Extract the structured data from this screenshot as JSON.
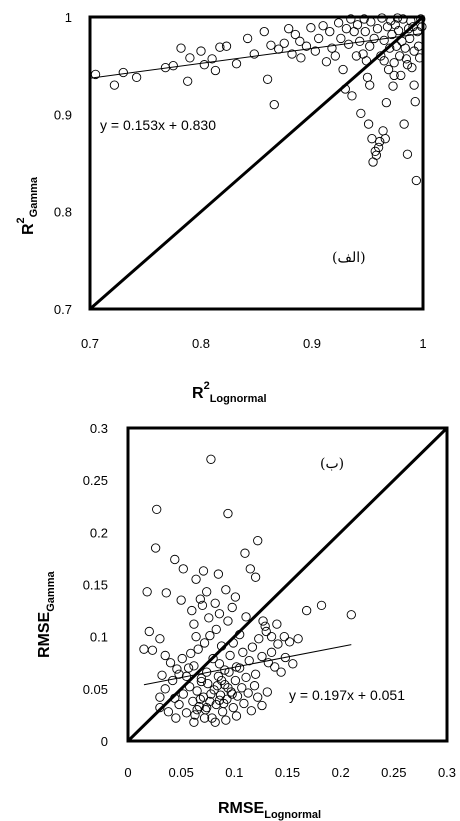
{
  "chart_data": [
    {
      "type": "scatter",
      "panel_label": "(الف)",
      "xlabel": {
        "main": "R",
        "sup": "2",
        "sub": "Lognormal"
      },
      "ylabel": {
        "main": "R",
        "sup": "2",
        "sub": "Gamma"
      },
      "xlim": [
        0.7,
        1.0
      ],
      "ylim": [
        0.7,
        1.0
      ],
      "xticks": [
        "0.7",
        "0.8",
        "0.9",
        "1"
      ],
      "yticks": [
        "0.7",
        "0.8",
        "0.9",
        "1"
      ],
      "grid": false,
      "lines": [
        {
          "kind": "identity",
          "x": [
            0.7,
            1.0
          ],
          "y": [
            0.7,
            1.0
          ]
        },
        {
          "kind": "fit",
          "slope": 0.153,
          "intercept": 0.83,
          "x": [
            0.7,
            1.0
          ]
        }
      ],
      "equation": "y = 0.153x + 0.830",
      "points": [
        [
          0.705,
          0.941
        ],
        [
          0.722,
          0.93
        ],
        [
          0.73,
          0.943
        ],
        [
          0.742,
          0.938
        ],
        [
          0.768,
          0.948
        ],
        [
          0.775,
          0.95
        ],
        [
          0.782,
          0.968
        ],
        [
          0.788,
          0.934
        ],
        [
          0.79,
          0.958
        ],
        [
          0.8,
          0.965
        ],
        [
          0.803,
          0.951
        ],
        [
          0.81,
          0.957
        ],
        [
          0.813,
          0.945
        ],
        [
          0.817,
          0.969
        ],
        [
          0.823,
          0.97
        ],
        [
          0.832,
          0.952
        ],
        [
          0.842,
          0.978
        ],
        [
          0.848,
          0.962
        ],
        [
          0.857,
          0.985
        ],
        [
          0.86,
          0.936
        ],
        [
          0.863,
          0.971
        ],
        [
          0.866,
          0.91
        ],
        [
          0.87,
          0.967
        ],
        [
          0.875,
          0.973
        ],
        [
          0.879,
          0.988
        ],
        [
          0.882,
          0.962
        ],
        [
          0.885,
          0.982
        ],
        [
          0.889,
          0.975
        ],
        [
          0.89,
          0.958
        ],
        [
          0.895,
          0.97
        ],
        [
          0.899,
          0.989
        ],
        [
          0.903,
          0.965
        ],
        [
          0.906,
          0.978
        ],
        [
          0.91,
          0.991
        ],
        [
          0.913,
          0.954
        ],
        [
          0.916,
          0.985
        ],
        [
          0.918,
          0.968
        ],
        [
          0.921,
          0.96
        ],
        [
          0.924,
          0.994
        ],
        [
          0.926,
          0.978
        ],
        [
          0.928,
          0.946
        ],
        [
          0.93,
          0.926
        ],
        [
          0.931,
          0.988
        ],
        [
          0.933,
          0.972
        ],
        [
          0.935,
          0.998
        ],
        [
          0.936,
          0.919
        ],
        [
          0.938,
          0.985
        ],
        [
          0.94,
          0.96
        ],
        [
          0.941,
          0.992
        ],
        [
          0.943,
          0.975
        ],
        [
          0.944,
          0.901
        ],
        [
          0.946,
          0.962
        ],
        [
          0.947,
          0.998
        ],
        [
          0.948,
          0.985
        ],
        [
          0.949,
          0.955
        ],
        [
          0.95,
          0.938
        ],
        [
          0.951,
          0.89
        ],
        [
          0.952,
          0.97
        ],
        [
          0.953,
          0.995
        ],
        [
          0.954,
          0.875
        ],
        [
          0.955,
          0.851
        ],
        [
          0.956,
          0.978
        ],
        [
          0.957,
          0.862
        ],
        [
          0.958,
          0.858
        ],
        [
          0.959,
          0.988
        ],
        [
          0.96,
          0.866
        ],
        [
          0.961,
          0.872
        ],
        [
          0.962,
          0.96
        ],
        [
          0.963,
          0.999
        ],
        [
          0.964,
          0.883
        ],
        [
          0.965,
          0.976
        ],
        [
          0.966,
          0.875
        ],
        [
          0.967,
          0.912
        ],
        [
          0.968,
          0.99
        ],
        [
          0.969,
          0.946
        ],
        [
          0.97,
          0.968
        ],
        [
          0.971,
          0.996
        ],
        [
          0.972,
          0.982
        ],
        [
          0.973,
          0.929
        ],
        [
          0.974,
          0.953
        ],
        [
          0.975,
          0.992
        ],
        [
          0.976,
          0.97
        ],
        [
          0.977,
          0.999
        ],
        [
          0.978,
          0.986
        ],
        [
          0.979,
          0.96
        ],
        [
          0.98,
          0.94
        ],
        [
          0.981,
          0.975
        ],
        [
          0.982,
          0.998
        ],
        [
          0.983,
          0.89
        ],
        [
          0.984,
          0.968
        ],
        [
          0.985,
          0.957
        ],
        [
          0.986,
          0.859
        ],
        [
          0.987,
          0.988
        ],
        [
          0.988,
          0.978
        ],
        [
          0.989,
          0.996
        ],
        [
          0.99,
          0.948
        ],
        [
          0.991,
          0.99
        ],
        [
          0.992,
          0.965
        ],
        [
          0.993,
          0.913
        ],
        [
          0.994,
          0.832
        ],
        [
          0.995,
          0.985
        ],
        [
          0.996,
          0.97
        ],
        [
          0.997,
          0.958
        ],
        [
          0.998,
          0.998
        ],
        [
          0.999,
          0.99
        ],
        [
          0.965,
          0.955
        ],
        [
          0.952,
          0.93
        ],
        [
          0.974,
          0.94
        ],
        [
          0.986,
          0.951
        ],
        [
          0.992,
          0.93
        ]
      ]
    },
    {
      "type": "scatter",
      "panel_label": "(ب)",
      "xlabel": {
        "main": "RMSE",
        "sub": "Lognormal"
      },
      "ylabel": {
        "main": "RMSE",
        "sub": "Gamma"
      },
      "xlim": [
        0,
        0.3
      ],
      "ylim": [
        0,
        0.3
      ],
      "xticks": [
        "0",
        "0.05",
        "0.1",
        "0.15",
        "0.2",
        "0.25",
        "0.3"
      ],
      "yticks": [
        "0",
        "0.05",
        "0.1",
        "0.15",
        "0.2",
        "0.25",
        "0.3"
      ],
      "grid": false,
      "lines": [
        {
          "kind": "identity",
          "x": [
            0,
            0.3
          ],
          "y": [
            0,
            0.3
          ]
        },
        {
          "kind": "fit",
          "slope": 0.197,
          "intercept": 0.051,
          "x": [
            0.015,
            0.21
          ]
        }
      ],
      "equation": "y = 0.197x + 0.051",
      "points": [
        [
          0.078,
          0.27
        ],
        [
          0.027,
          0.222
        ],
        [
          0.094,
          0.218
        ],
        [
          0.026,
          0.185
        ],
        [
          0.044,
          0.174
        ],
        [
          0.052,
          0.165
        ],
        [
          0.071,
          0.163
        ],
        [
          0.085,
          0.16
        ],
        [
          0.074,
          0.143
        ],
        [
          0.064,
          0.155
        ],
        [
          0.018,
          0.143
        ],
        [
          0.036,
          0.142
        ],
        [
          0.06,
          0.125
        ],
        [
          0.068,
          0.136
        ],
        [
          0.082,
          0.132
        ],
        [
          0.092,
          0.145
        ],
        [
          0.101,
          0.138
        ],
        [
          0.11,
          0.18
        ],
        [
          0.115,
          0.165
        ],
        [
          0.12,
          0.157
        ],
        [
          0.122,
          0.192
        ],
        [
          0.127,
          0.115
        ],
        [
          0.13,
          0.105
        ],
        [
          0.135,
          0.1
        ],
        [
          0.14,
          0.112
        ],
        [
          0.147,
          0.1
        ],
        [
          0.152,
          0.095
        ],
        [
          0.16,
          0.098
        ],
        [
          0.168,
          0.125
        ],
        [
          0.182,
          0.13
        ],
        [
          0.21,
          0.121
        ],
        [
          0.02,
          0.105
        ],
        [
          0.03,
          0.098
        ],
        [
          0.035,
          0.082
        ],
        [
          0.04,
          0.075
        ],
        [
          0.046,
          0.069
        ],
        [
          0.051,
          0.079
        ],
        [
          0.055,
          0.062
        ],
        [
          0.059,
          0.084
        ],
        [
          0.062,
          0.072
        ],
        [
          0.066,
          0.088
        ],
        [
          0.069,
          0.057
        ],
        [
          0.072,
          0.094
        ],
        [
          0.074,
          0.066
        ],
        [
          0.077,
          0.101
        ],
        [
          0.08,
          0.079
        ],
        [
          0.083,
          0.107
        ],
        [
          0.086,
          0.074
        ],
        [
          0.088,
          0.091
        ],
        [
          0.091,
          0.068
        ],
        [
          0.094,
          0.115
        ],
        [
          0.096,
          0.082
        ],
        [
          0.099,
          0.094
        ],
        [
          0.102,
          0.071
        ],
        [
          0.105,
          0.102
        ],
        [
          0.108,
          0.085
        ],
        [
          0.111,
          0.119
        ],
        [
          0.114,
          0.077
        ],
        [
          0.117,
          0.09
        ],
        [
          0.12,
          0.064
        ],
        [
          0.123,
          0.098
        ],
        [
          0.126,
          0.081
        ],
        [
          0.129,
          0.11
        ],
        [
          0.132,
          0.075
        ],
        [
          0.135,
          0.085
        ],
        [
          0.138,
          0.071
        ],
        [
          0.141,
          0.093
        ],
        [
          0.144,
          0.066
        ],
        [
          0.148,
          0.08
        ],
        [
          0.155,
          0.074
        ],
        [
          0.03,
          0.032
        ],
        [
          0.038,
          0.028
        ],
        [
          0.044,
          0.041
        ],
        [
          0.048,
          0.035
        ],
        [
          0.052,
          0.045
        ],
        [
          0.055,
          0.027
        ],
        [
          0.058,
          0.052
        ],
        [
          0.061,
          0.038
        ],
        [
          0.063,
          0.025
        ],
        [
          0.065,
          0.048
        ],
        [
          0.067,
          0.033
        ],
        [
          0.069,
          0.06
        ],
        [
          0.071,
          0.042
        ],
        [
          0.073,
          0.03
        ],
        [
          0.075,
          0.055
        ],
        [
          0.077,
          0.038
        ],
        [
          0.079,
          0.022
        ],
        [
          0.081,
          0.049
        ],
        [
          0.083,
          0.035
        ],
        [
          0.085,
          0.062
        ],
        [
          0.087,
          0.044
        ],
        [
          0.089,
          0.028
        ],
        [
          0.091,
          0.054
        ],
        [
          0.093,
          0.04
        ],
        [
          0.095,
          0.066
        ],
        [
          0.097,
          0.047
        ],
        [
          0.099,
          0.032
        ],
        [
          0.101,
          0.058
        ],
        [
          0.103,
          0.043
        ],
        [
          0.105,
          0.07
        ],
        [
          0.107,
          0.051
        ],
        [
          0.109,
          0.036
        ],
        [
          0.111,
          0.061
        ],
        [
          0.113,
          0.046
        ],
        [
          0.116,
          0.029
        ],
        [
          0.119,
          0.053
        ],
        [
          0.122,
          0.042
        ],
        [
          0.126,
          0.034
        ],
        [
          0.131,
          0.047
        ],
        [
          0.062,
          0.018
        ],
        [
          0.072,
          0.022
        ],
        [
          0.082,
          0.018
        ],
        [
          0.092,
          0.02
        ],
        [
          0.102,
          0.024
        ],
        [
          0.045,
          0.022
        ],
        [
          0.035,
          0.05
        ],
        [
          0.042,
          0.058
        ],
        [
          0.048,
          0.064
        ],
        [
          0.057,
          0.07
        ],
        [
          0.064,
          0.1
        ],
        [
          0.076,
          0.118
        ],
        [
          0.086,
          0.122
        ],
        [
          0.098,
          0.128
        ],
        [
          0.07,
          0.13
        ],
        [
          0.062,
          0.112
        ],
        [
          0.05,
          0.135
        ],
        [
          0.032,
          0.063
        ],
        [
          0.03,
          0.042
        ],
        [
          0.023,
          0.087
        ],
        [
          0.015,
          0.088
        ],
        [
          0.086,
          0.039
        ],
        [
          0.09,
          0.036
        ],
        [
          0.094,
          0.051
        ],
        [
          0.098,
          0.045
        ],
        [
          0.078,
          0.045
        ],
        [
          0.074,
          0.032
        ],
        [
          0.068,
          0.04
        ],
        [
          0.065,
          0.03
        ],
        [
          0.084,
          0.053
        ],
        [
          0.088,
          0.058
        ]
      ]
    }
  ]
}
